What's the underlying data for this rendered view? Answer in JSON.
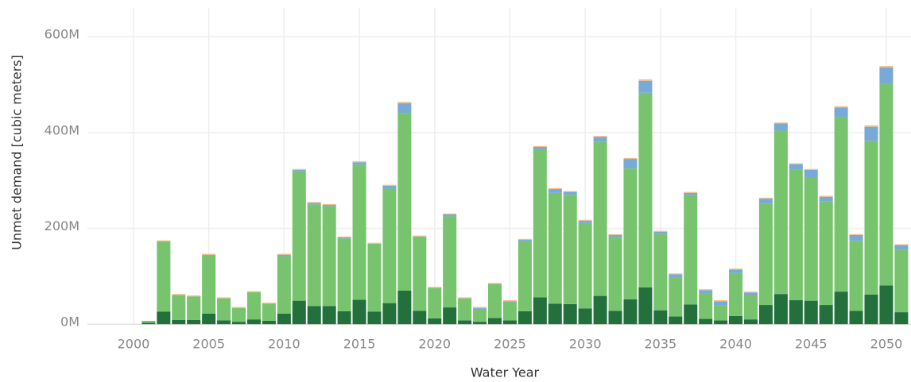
{
  "chart_data": {
    "type": "bar",
    "stacked": true,
    "x_label": "Water Year",
    "y_label": "Unmet demand [cubic meters]",
    "x": [
      2001,
      2002,
      2003,
      2004,
      2005,
      2006,
      2007,
      2008,
      2009,
      2010,
      2011,
      2012,
      2013,
      2014,
      2015,
      2016,
      2017,
      2018,
      2019,
      2020,
      2021,
      2022,
      2023,
      2024,
      2025,
      2026,
      2027,
      2028,
      2029,
      2030,
      2031,
      2032,
      2033,
      2034,
      2035,
      2036,
      2037,
      2038,
      2039,
      2040,
      2041,
      2042,
      2043,
      2044,
      2045,
      2046,
      2047,
      2048,
      2049,
      2050,
      2051
    ],
    "series": [
      {
        "color": "#23703c",
        "values": [
          3,
          26,
          9,
          9,
          22,
          8,
          5,
          10,
          7,
          22,
          49,
          38,
          38,
          27,
          51,
          26,
          44,
          70,
          28,
          12,
          35,
          8,
          5,
          13,
          8,
          27,
          56,
          43,
          42,
          33,
          59,
          28,
          52,
          77,
          29,
          16,
          41,
          11,
          8,
          17,
          10,
          40,
          63,
          50,
          49,
          40,
          68,
          28,
          62,
          81,
          25
        ]
      },
      {
        "color": "#78c46e",
        "values": [
          4,
          147,
          52,
          49,
          123,
          46,
          29,
          57,
          36,
          120,
          270,
          212,
          208,
          152,
          282,
          142,
          239,
          371,
          155,
          64,
          190,
          46,
          27,
          71,
          38,
          146,
          309,
          231,
          228,
          178,
          322,
          154,
          273,
          406,
          159,
          82,
          228,
          54,
          32,
          90,
          50,
          212,
          341,
          272,
          258,
          216,
          364,
          146,
          320,
          420,
          130
        ]
      },
      {
        "color": "#79a9d6",
        "values": [
          0,
          0,
          0,
          0,
          0,
          0,
          0,
          0,
          0,
          3,
          3,
          3,
          3,
          2,
          5,
          0,
          6,
          20,
          0,
          0,
          4,
          0,
          2,
          0,
          2,
          3,
          5,
          8,
          6,
          5,
          10,
          4,
          20,
          25,
          5,
          6,
          5,
          6,
          8,
          7,
          6,
          10,
          15,
          12,
          15,
          10,
          20,
          12,
          30,
          35,
          10
        ]
      },
      {
        "color": "#f3c08a",
        "values": [
          0,
          2,
          2,
          2,
          2,
          2,
          2,
          2,
          2,
          2,
          2,
          2,
          2,
          2,
          2,
          2,
          2,
          3,
          2,
          2,
          2,
          2,
          2,
          2,
          2,
          2,
          2,
          2,
          2,
          2,
          2,
          2,
          2,
          3,
          2,
          2,
          2,
          2,
          2,
          2,
          2,
          2,
          2,
          2,
          2,
          2,
          3,
          2,
          3,
          3,
          2
        ]
      }
    ],
    "xlim": [
      1996.94,
      2051.64
    ],
    "xticks": [
      2000,
      2005,
      2010,
      2015,
      2020,
      2025,
      2030,
      2035,
      2040,
      2045,
      2050
    ],
    "ylim": [
      -3,
      660
    ],
    "yticks": [
      {
        "value": 0,
        "label": "0M"
      },
      {
        "value": 200,
        "label": "200M"
      },
      {
        "value": 400,
        "label": "400M"
      },
      {
        "value": 600,
        "label": "600M"
      }
    ],
    "grid": true
  }
}
